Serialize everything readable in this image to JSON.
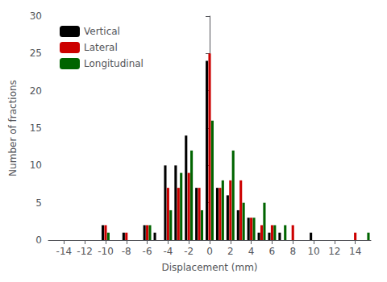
{
  "chart_data": {
    "type": "bar",
    "x": [
      -14,
      -13,
      -12,
      -11,
      -10,
      -9,
      -8,
      -7,
      -6,
      -5,
      -4,
      -3,
      -2,
      -1,
      0,
      1,
      2,
      3,
      4,
      5,
      6,
      7,
      8,
      9,
      10,
      11,
      12,
      13,
      14,
      15
    ],
    "series": [
      {
        "name": "Vertical",
        "color": "#000000",
        "values": [
          0,
          0,
          0,
          0,
          2,
          0,
          1,
          0,
          2,
          1,
          10,
          10,
          14,
          7,
          24,
          7,
          6,
          4,
          3,
          1,
          1,
          1,
          0,
          0,
          1,
          0,
          0,
          0,
          0,
          0
        ]
      },
      {
        "name": "Lateral",
        "color": "#cc0000",
        "values": [
          0,
          0,
          0,
          0,
          2,
          0,
          1,
          0,
          2,
          0,
          7,
          7,
          9,
          7,
          25,
          7,
          8,
          8,
          3,
          2,
          2,
          0,
          2,
          0,
          0,
          0,
          0,
          0,
          1,
          0
        ]
      },
      {
        "name": "Longitudinal",
        "color": "#006400",
        "values": [
          0,
          0,
          0,
          0,
          1,
          0,
          0,
          0,
          2,
          0,
          4,
          9,
          12,
          4,
          16,
          8,
          12,
          5,
          3,
          5,
          2,
          2,
          0,
          0,
          0,
          0,
          0,
          0,
          0,
          1
        ]
      }
    ],
    "xlabel": "Displacement (mm)",
    "ylabel": "Number of fractions",
    "xlim": [
      -15.5,
      15.5
    ],
    "xticks": [
      -14,
      -12,
      -10,
      -8,
      -6,
      -4,
      -2,
      0,
      2,
      4,
      6,
      8,
      10,
      12,
      14
    ],
    "ylim": [
      0,
      30
    ],
    "yticks": [
      0,
      5,
      10,
      15,
      20,
      25,
      30
    ],
    "legend": "upper left",
    "grid": false
  }
}
